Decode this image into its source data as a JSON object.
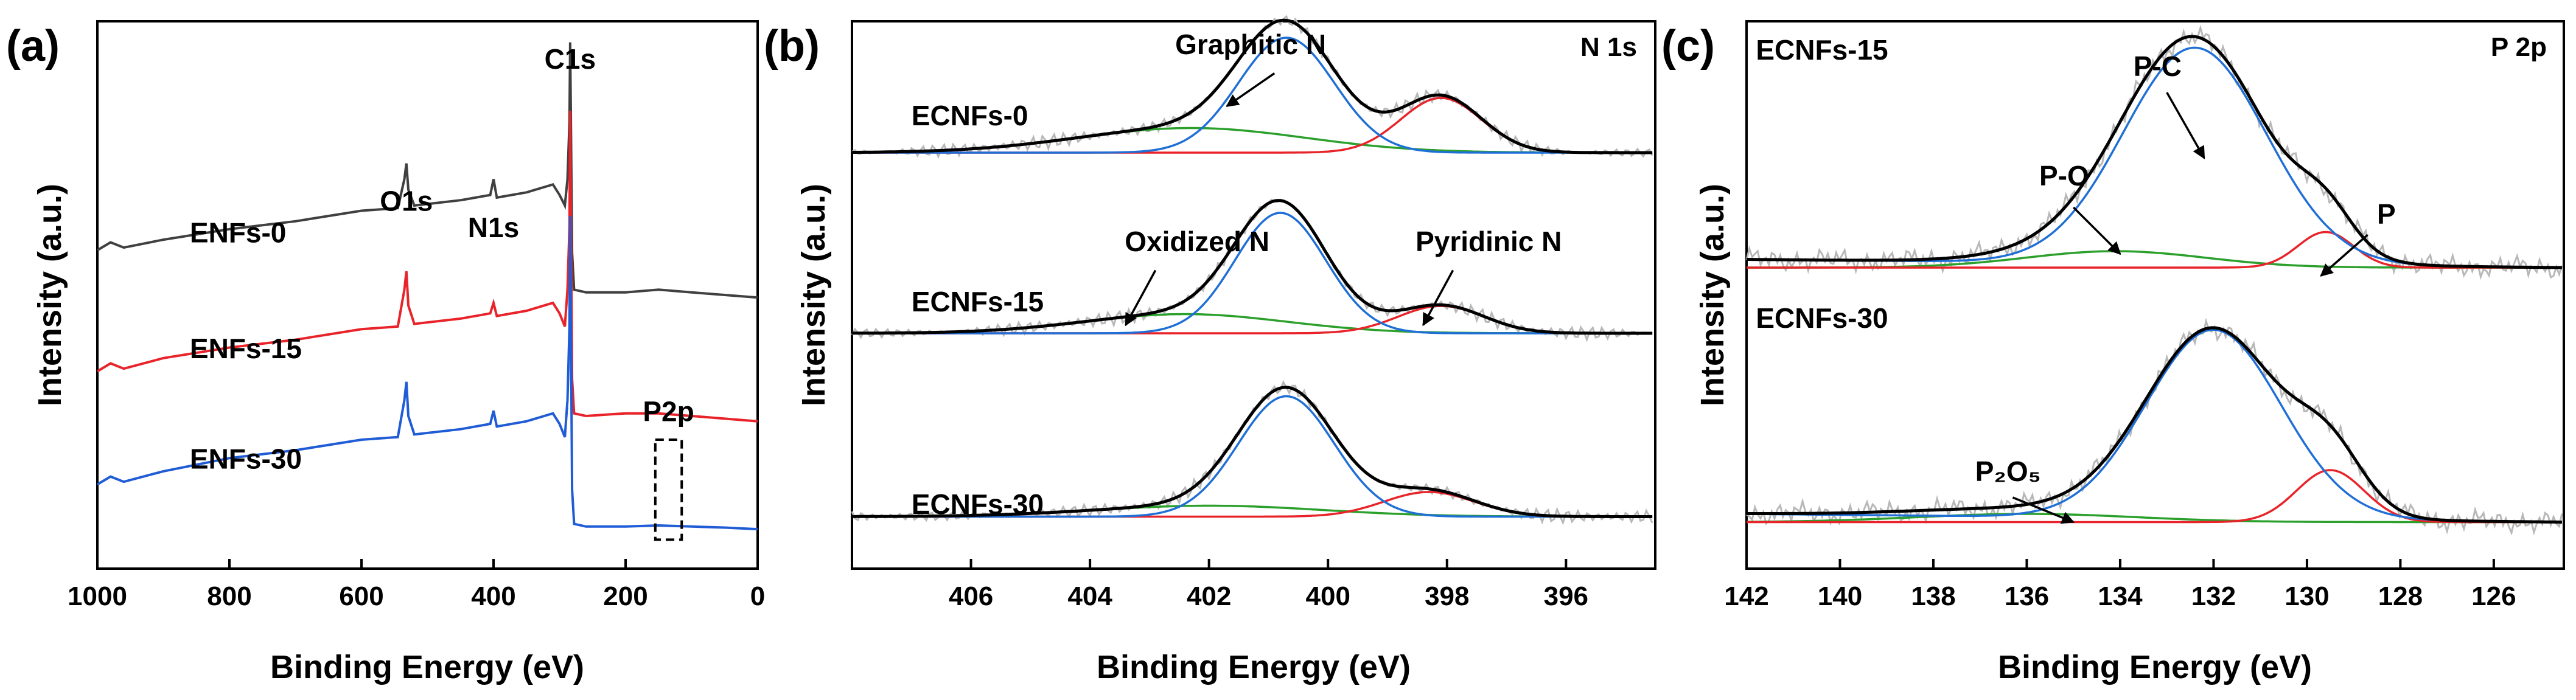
{
  "figure": {
    "panels": [
      {
        "letter": "(a)",
        "xlabel": "Binding Energy (eV)",
        "ylabel": "Intensity (a.u.)",
        "corner_label": "",
        "xlim": [
          1000,
          0
        ],
        "xticks": [
          1000,
          800,
          600,
          400,
          200,
          0
        ],
        "ylim": [
          0,
          10
        ],
        "curve_labels": [
          {
            "text": "ENFs-0",
            "x": 860,
            "y": 6.2
          },
          {
            "text": "ENFs-15",
            "x": 860,
            "y": 4.0
          },
          {
            "text": "ENFs-30",
            "x": 860,
            "y": 1.9
          }
        ],
        "peak_labels": [
          {
            "text": "O1s",
            "x": 532,
            "y": 6.8
          },
          {
            "text": "N1s",
            "x": 400,
            "y": 6.3
          },
          {
            "text": "C1s",
            "x": 284,
            "y": 9.5
          },
          {
            "text": "P2p",
            "x": 135,
            "y": 2.8
          }
        ]
      },
      {
        "letter": "(b)",
        "xlabel": "Binding Energy (eV)",
        "ylabel": "Intensity (a.u.)",
        "corner_label": "N 1s",
        "xlim": [
          408,
          394.5
        ],
        "xticks": [
          406,
          404,
          402,
          400,
          398,
          396
        ],
        "ylim": [
          0,
          10
        ],
        "curve_labels": [
          {
            "text": "ECNFs-0",
            "x": 407.0,
            "y": 8.1
          },
          {
            "text": "ECNFs-15",
            "x": 407.0,
            "y": 4.7
          },
          {
            "text": "ECNFs-30",
            "x": 407.0,
            "y": 1.0
          }
        ],
        "annotations": [
          {
            "text": "Graphitic N",
            "x": 401.3,
            "y": 9.4
          },
          {
            "text": "Oxidized N",
            "x": 402.2,
            "y": 5.8
          },
          {
            "text": "Pyridinic N",
            "x": 397.3,
            "y": 5.8
          }
        ]
      },
      {
        "letter": "(c)",
        "xlabel": "Binding Energy (eV)",
        "ylabel": "Intensity (a.u.)",
        "corner_label": "P 2p",
        "xlim": [
          142,
          124.5
        ],
        "xticks": [
          142,
          140,
          138,
          136,
          134,
          132,
          130,
          128,
          126
        ],
        "ylim": [
          0,
          10
        ],
        "curve_labels": [
          {
            "text": "ECNFs-15",
            "x": 141.8,
            "y": 9.3
          },
          {
            "text": "ECNFs-30",
            "x": 141.8,
            "y": 4.4
          }
        ],
        "annotations": [
          {
            "text": "P-C",
            "x": 133.2,
            "y": 9.0
          },
          {
            "text": "P-O",
            "x": 135.2,
            "y": 7.0
          },
          {
            "text": "P",
            "x": 128.3,
            "y": 6.3
          },
          {
            "text": "P₂O₅",
            "x": 136.4,
            "y": 1.6
          }
        ]
      }
    ]
  },
  "chart_data": [
    {
      "type": "line",
      "title": "",
      "xlabel": "Binding Energy (eV)",
      "ylabel": "Intensity (a.u.)",
      "xlim": [
        1000,
        0
      ],
      "xticks": [
        1000,
        800,
        600,
        400,
        200,
        0
      ],
      "yticks_visible": false,
      "legend": "none",
      "colors": {
        "ENFs-0": "#404040",
        "ENFs-15": "#e8242a",
        "ENFs-30": "#1f5cd6",
        "box": "#000000"
      },
      "peaks": {
        "O1s": 532,
        "N1s": 400,
        "C1s": 284,
        "P2p": 133
      },
      "series": [
        {
          "name": "ENFs-0",
          "color": "#404040",
          "x": [
            1000,
            980,
            960,
            900,
            800,
            700,
            600,
            545,
            535,
            532,
            529,
            520,
            450,
            405,
            400,
            395,
            350,
            310,
            300,
            292,
            288,
            285,
            284,
            283,
            281,
            278,
            260,
            200,
            150,
            100,
            50,
            0
          ],
          "y": [
            6.05,
            6.2,
            6.1,
            6.25,
            6.45,
            6.6,
            6.8,
            6.85,
            7.4,
            7.7,
            7.2,
            6.9,
            7.0,
            7.1,
            7.4,
            7.05,
            7.15,
            7.3,
            7.1,
            6.9,
            7.4,
            8.5,
            10.0,
            8.8,
            6.0,
            5.3,
            5.25,
            5.25,
            5.3,
            5.25,
            5.2,
            5.15
          ]
        },
        {
          "name": "ENFs-15",
          "color": "#e8242a",
          "x": [
            1000,
            980,
            960,
            900,
            800,
            700,
            600,
            545,
            535,
            532,
            529,
            520,
            450,
            405,
            400,
            395,
            350,
            310,
            300,
            292,
            288,
            285,
            284,
            283,
            281,
            278,
            260,
            200,
            150,
            100,
            50,
            0
          ],
          "y": [
            3.75,
            3.9,
            3.8,
            4.0,
            4.2,
            4.35,
            4.55,
            4.6,
            5.3,
            5.65,
            5.0,
            4.65,
            4.75,
            4.85,
            5.05,
            4.8,
            4.9,
            5.05,
            4.85,
            4.6,
            5.3,
            6.5,
            8.7,
            7.0,
            3.6,
            2.95,
            2.9,
            2.95,
            2.95,
            2.9,
            2.85,
            2.8
          ]
        },
        {
          "name": "ENFs-30",
          "color": "#1f5cd6",
          "x": [
            1000,
            980,
            960,
            900,
            800,
            700,
            600,
            545,
            535,
            532,
            529,
            520,
            450,
            405,
            400,
            395,
            350,
            310,
            300,
            292,
            288,
            285,
            284,
            283,
            281,
            278,
            260,
            200,
            150,
            100,
            50,
            0
          ],
          "y": [
            1.6,
            1.75,
            1.65,
            1.85,
            2.1,
            2.25,
            2.45,
            2.5,
            3.2,
            3.55,
            2.9,
            2.55,
            2.65,
            2.75,
            3.0,
            2.7,
            2.8,
            2.95,
            2.75,
            2.5,
            3.2,
            4.6,
            6.7,
            5.0,
            1.5,
            0.85,
            0.8,
            0.8,
            0.82,
            0.8,
            0.78,
            0.75
          ]
        }
      ]
    },
    {
      "type": "line",
      "title": "",
      "xlabel": "Binding Energy (eV)",
      "ylabel": "Intensity (a.u.)",
      "xlim": [
        408,
        394.5
      ],
      "xticks": [
        406,
        404,
        402,
        400,
        398,
        396
      ],
      "yticks_visible": false,
      "legend": "none",
      "colors": {
        "raw": "#b8b8b8",
        "envelope": "#000000",
        "graphitic": "#1f6fd6",
        "pyridinic": "#e8242a",
        "oxidized": "#2ca02c"
      },
      "components": {
        "ECNFs-0": {
          "baseline": 7.6,
          "graphitic": {
            "center": 400.7,
            "height": 2.1,
            "fwhm": 1.9
          },
          "pyridinic": {
            "center": 398.1,
            "height": 1.0,
            "fwhm": 1.6
          },
          "oxidized": {
            "center": 402.3,
            "height": 0.45,
            "fwhm": 4.5
          }
        },
        "ECNFs-15": {
          "baseline": 4.3,
          "graphitic": {
            "center": 400.8,
            "height": 2.2,
            "fwhm": 1.8
          },
          "pyridinic": {
            "center": 398.1,
            "height": 0.5,
            "fwhm": 1.7
          },
          "oxidized": {
            "center": 402.4,
            "height": 0.35,
            "fwhm": 4.0
          }
        },
        "ECNFs-30": {
          "baseline": 0.95,
          "graphitic": {
            "center": 400.7,
            "height": 2.2,
            "fwhm": 1.9
          },
          "pyridinic": {
            "center": 398.3,
            "height": 0.45,
            "fwhm": 1.8
          },
          "oxidized": {
            "center": 402.0,
            "height": 0.2,
            "fwhm": 4.5
          }
        }
      }
    },
    {
      "type": "line",
      "title": "",
      "xlabel": "Binding Energy (eV)",
      "ylabel": "Intensity (a.u.)",
      "xlim": [
        142,
        124.5
      ],
      "xticks": [
        142,
        140,
        138,
        136,
        134,
        132,
        130,
        128,
        126
      ],
      "yticks_visible": false,
      "legend": "none",
      "colors": {
        "raw": "#b8b8b8",
        "envelope": "#000000",
        "pc": "#1f6fd6",
        "p": "#e8242a",
        "po": "#2ca02c"
      },
      "components": {
        "ECNFs-15": {
          "baseline": 5.5,
          "pc": {
            "center": 132.4,
            "height": 3.95,
            "fwhm": 3.6
          },
          "p": {
            "center": 129.6,
            "height": 0.65,
            "fwhm": 1.4
          },
          "po": {
            "center": 134.1,
            "height": 0.3,
            "fwhm": 4.5
          }
        },
        "ECNFs-30": {
          "baseline": 0.85,
          "pc": {
            "center": 132.0,
            "height": 3.45,
            "fwhm": 3.4
          },
          "p": {
            "center": 129.5,
            "height": 0.95,
            "fwhm": 1.7
          },
          "po": {
            "center": 136.0,
            "height": 0.15,
            "fwhm": 5.5
          }
        }
      }
    }
  ]
}
